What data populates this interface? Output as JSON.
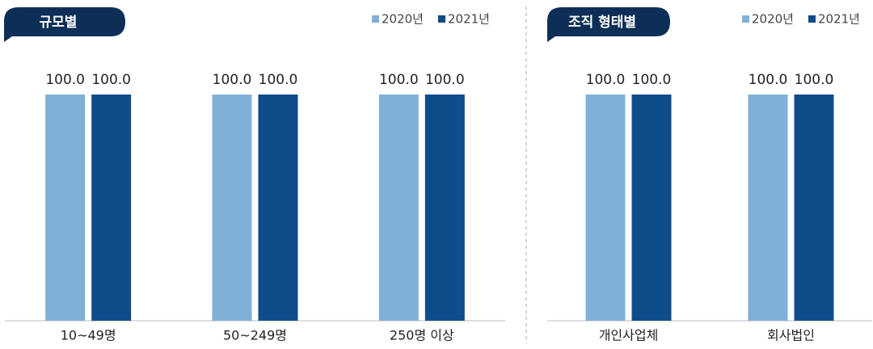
{
  "chart_data": [
    {
      "type": "bar",
      "title": "규모별",
      "categories": [
        "10~49명",
        "50~249명",
        "250명 이상"
      ],
      "series": [
        {
          "name": "2020년",
          "color": "#80b0d7",
          "values": [
            100,
            100,
            100
          ],
          "value_labels": [
            "100.0",
            "100.0",
            "100.0"
          ]
        },
        {
          "name": "2021년",
          "color": "#0f4c8a",
          "values": [
            100,
            100,
            100
          ],
          "value_labels": [
            "100.0",
            "100.0",
            "100.0"
          ]
        }
      ],
      "ylim": [
        0,
        100
      ]
    },
    {
      "type": "bar",
      "title": "조직 형태별",
      "categories": [
        "개인사업체",
        "회사법인"
      ],
      "series": [
        {
          "name": "2020년",
          "color": "#80b0d7",
          "values": [
            100,
            100
          ],
          "value_labels": [
            "100.0",
            "100.0"
          ]
        },
        {
          "name": "2021년",
          "color": "#0f4c8a",
          "values": [
            100,
            100
          ],
          "value_labels": [
            "100.0",
            "100.0"
          ]
        }
      ],
      "ylim": [
        0,
        100
      ]
    }
  ]
}
